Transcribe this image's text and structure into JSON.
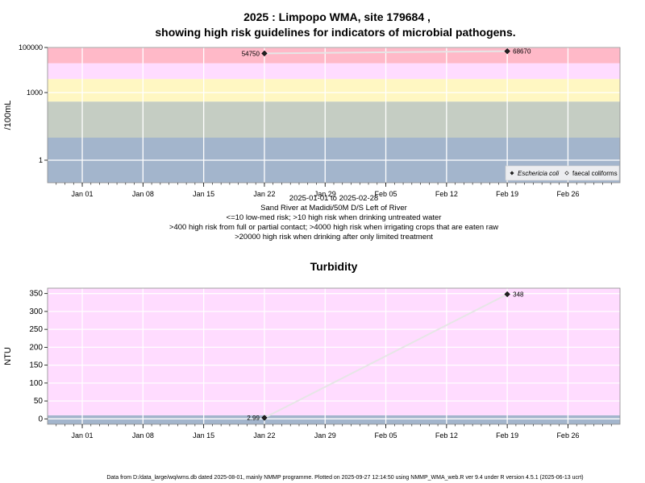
{
  "chart_data": [
    {
      "type": "line",
      "title": "2025 : Limpopo WMA, site 179684 ,",
      "subtitle": "showing high risk guidelines for indicators of microbial pathogens.",
      "ylabel": "/100mL",
      "yscale": "log",
      "ylim": [
        0.1,
        100000
      ],
      "yticks": [
        1,
        1000,
        100000
      ],
      "ytick_labels": [
        "1",
        "1000",
        "100000"
      ],
      "xlim": [
        "2024-12-28",
        "2025-03-04"
      ],
      "xticks": [
        "2025-01-01",
        "2025-01-08",
        "2025-01-15",
        "2025-01-22",
        "2025-01-29",
        "2025-02-05",
        "2025-02-12",
        "2025-02-19",
        "2025-02-26"
      ],
      "xtick_labels": [
        "Jan 01",
        "Jan 08",
        "Jan 15",
        "Jan 22",
        "Jan 29",
        "Feb 05",
        "Feb 12",
        "Feb 19",
        "Feb 26"
      ],
      "bands": [
        {
          "from": 0.1,
          "to": 10,
          "color": "#a3b5cc"
        },
        {
          "from": 10,
          "to": 400,
          "color": "#c5cdc3"
        },
        {
          "from": 400,
          "to": 4000,
          "color": "#fff7c2"
        },
        {
          "from": 4000,
          "to": 20000,
          "color": "#ffdcff"
        },
        {
          "from": 20000,
          "to": 100000,
          "color": "#ffb9c8"
        }
      ],
      "series": [
        {
          "name": "Eschericia coli",
          "x": [
            "2025-01-22",
            "2025-02-19"
          ],
          "y": [
            54750,
            68670
          ],
          "labels": [
            "54750",
            "68670"
          ],
          "marker": "filled-diamond"
        },
        {
          "name": "faecal coliforms",
          "x": [],
          "y": [],
          "marker": "open-diamond"
        }
      ],
      "legend": "bottom-right",
      "grid": true,
      "captions": [
        "2025-01-01 to 2025-02-28",
        "Sand River at Madidi/50M D/S Left of River",
        "<=10 low-med risk; >10 high risk when drinking untreated water",
        ">400 high risk from full or partial contact; >4000 high risk when irrigating crops that are eaten raw",
        ">20000 high risk when drinking after only limited treatment"
      ]
    },
    {
      "type": "line",
      "title": "Turbidity",
      "ylabel": "NTU",
      "ylim": [
        -15,
        365
      ],
      "yticks": [
        0,
        50,
        100,
        150,
        200,
        250,
        300,
        350
      ],
      "xlim": [
        "2024-12-28",
        "2025-03-04"
      ],
      "xticks": [
        "2025-01-01",
        "2025-01-08",
        "2025-01-15",
        "2025-01-22",
        "2025-01-29",
        "2025-02-05",
        "2025-02-12",
        "2025-02-19",
        "2025-02-26"
      ],
      "xtick_labels": [
        "Jan 01",
        "Jan 08",
        "Jan 15",
        "Jan 22",
        "Jan 29",
        "Feb 05",
        "Feb 12",
        "Feb 19",
        "Feb 26"
      ],
      "bands": [
        {
          "from": -15,
          "to": 10,
          "color": "#a3b5cc"
        },
        {
          "from": 10,
          "to": 365,
          "color": "#ffdcff"
        }
      ],
      "series": [
        {
          "name": "",
          "x": [
            "2025-01-22",
            "2025-02-19"
          ],
          "y": [
            2.99,
            348
          ],
          "labels": [
            "2.99",
            "348"
          ],
          "marker": "filled-diamond"
        }
      ],
      "grid": true
    }
  ],
  "footer": "Data from D:/data_large/wq/wms.db dated 2025-08-01, mainly NMMP programme. Plotted on 2025-09-27 12:14:50 using NMMP_WMA_web.R ver 9.4 under R version 4.5.1 (2025-06-13 ucrt)"
}
